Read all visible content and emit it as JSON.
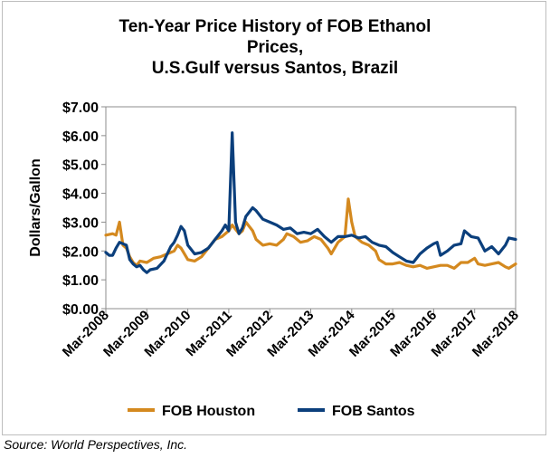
{
  "chart_data": {
    "type": "line",
    "title_lines": [
      "Ten-Year Price History of FOB Ethanol",
      "Prices,",
      "U.S.Gulf versus Santos, Brazil"
    ],
    "ylabel": "Dollars/Gallon",
    "xlabel": "",
    "ylim": [
      0,
      7
    ],
    "y_ticks": [
      {
        "value": 0,
        "label": "$0.00"
      },
      {
        "value": 1,
        "label": "$1.00"
      },
      {
        "value": 2,
        "label": "$2.00"
      },
      {
        "value": 3,
        "label": "$3.00"
      },
      {
        "value": 4,
        "label": "$4.00"
      },
      {
        "value": 5,
        "label": "$5.00"
      },
      {
        "value": 6,
        "label": "$6.00"
      },
      {
        "value": 7,
        "label": "$7.00"
      }
    ],
    "x_range": [
      "2008-03",
      "2018-03"
    ],
    "x_ticks": [
      "Mar-2008",
      "Mar-2009",
      "Mar-2010",
      "Mar-2011",
      "Mar-2012",
      "Mar-2013",
      "Mar-2014",
      "Mar-2015",
      "Mar-2016",
      "Mar-2017",
      "Mar-2018"
    ],
    "grid": false,
    "legend_position": "bottom",
    "series": [
      {
        "name": "FOB Houston",
        "color": "#d4891f",
        "points": [
          [
            "2008-03",
            2.55
          ],
          [
            "2008-05",
            2.6
          ],
          [
            "2008-06",
            2.55
          ],
          [
            "2008-07",
            3.0
          ],
          [
            "2008-08",
            2.2
          ],
          [
            "2008-09",
            2.1
          ],
          [
            "2008-10",
            1.8
          ],
          [
            "2008-11",
            1.6
          ],
          [
            "2008-12",
            1.5
          ],
          [
            "2009-01",
            1.65
          ],
          [
            "2009-03",
            1.6
          ],
          [
            "2009-05",
            1.75
          ],
          [
            "2009-07",
            1.8
          ],
          [
            "2009-09",
            1.9
          ],
          [
            "2009-11",
            2.0
          ],
          [
            "2009-12",
            2.2
          ],
          [
            "2010-01",
            2.1
          ],
          [
            "2010-03",
            1.7
          ],
          [
            "2010-05",
            1.65
          ],
          [
            "2010-07",
            1.8
          ],
          [
            "2010-09",
            2.1
          ],
          [
            "2010-11",
            2.4
          ],
          [
            "2011-01",
            2.5
          ],
          [
            "2011-03",
            2.7
          ],
          [
            "2011-04",
            2.9
          ],
          [
            "2011-06",
            2.6
          ],
          [
            "2011-07",
            2.7
          ],
          [
            "2011-08",
            3.0
          ],
          [
            "2011-10",
            2.7
          ],
          [
            "2011-11",
            2.4
          ],
          [
            "2012-01",
            2.2
          ],
          [
            "2012-03",
            2.25
          ],
          [
            "2012-05",
            2.2
          ],
          [
            "2012-07",
            2.4
          ],
          [
            "2012-08",
            2.6
          ],
          [
            "2012-10",
            2.5
          ],
          [
            "2012-12",
            2.3
          ],
          [
            "2013-02",
            2.35
          ],
          [
            "2013-04",
            2.5
          ],
          [
            "2013-06",
            2.4
          ],
          [
            "2013-08",
            2.1
          ],
          [
            "2013-09",
            1.9
          ],
          [
            "2013-11",
            2.3
          ],
          [
            "2014-01",
            2.5
          ],
          [
            "2014-02",
            3.8
          ],
          [
            "2014-03",
            3.0
          ],
          [
            "2014-04",
            2.5
          ],
          [
            "2014-06",
            2.3
          ],
          [
            "2014-08",
            2.2
          ],
          [
            "2014-10",
            2.0
          ],
          [
            "2014-11",
            1.7
          ],
          [
            "2015-01",
            1.55
          ],
          [
            "2015-03",
            1.55
          ],
          [
            "2015-05",
            1.6
          ],
          [
            "2015-07",
            1.5
          ],
          [
            "2015-09",
            1.45
          ],
          [
            "2015-11",
            1.5
          ],
          [
            "2016-01",
            1.4
          ],
          [
            "2016-03",
            1.45
          ],
          [
            "2016-05",
            1.5
          ],
          [
            "2016-07",
            1.5
          ],
          [
            "2016-09",
            1.4
          ],
          [
            "2016-11",
            1.6
          ],
          [
            "2017-01",
            1.6
          ],
          [
            "2017-03",
            1.75
          ],
          [
            "2017-04",
            1.55
          ],
          [
            "2017-06",
            1.5
          ],
          [
            "2017-08",
            1.55
          ],
          [
            "2017-10",
            1.6
          ],
          [
            "2017-12",
            1.45
          ],
          [
            "2018-01",
            1.4
          ],
          [
            "2018-03",
            1.55
          ]
        ]
      },
      {
        "name": "FOB Santos",
        "color": "#0b3f7c",
        "points": [
          [
            "2008-03",
            1.95
          ],
          [
            "2008-04",
            1.85
          ],
          [
            "2008-05",
            1.85
          ],
          [
            "2008-06",
            2.1
          ],
          [
            "2008-07",
            2.3
          ],
          [
            "2008-08",
            2.25
          ],
          [
            "2008-09",
            2.2
          ],
          [
            "2008-10",
            1.7
          ],
          [
            "2008-11",
            1.55
          ],
          [
            "2008-12",
            1.45
          ],
          [
            "2009-01",
            1.5
          ],
          [
            "2009-02",
            1.35
          ],
          [
            "2009-03",
            1.25
          ],
          [
            "2009-04",
            1.35
          ],
          [
            "2009-06",
            1.4
          ],
          [
            "2009-08",
            1.65
          ],
          [
            "2009-09",
            1.9
          ],
          [
            "2009-10",
            2.15
          ],
          [
            "2009-11",
            2.3
          ],
          [
            "2009-12",
            2.55
          ],
          [
            "2010-01",
            2.85
          ],
          [
            "2010-02",
            2.7
          ],
          [
            "2010-03",
            2.2
          ],
          [
            "2010-05",
            1.9
          ],
          [
            "2010-07",
            1.95
          ],
          [
            "2010-09",
            2.1
          ],
          [
            "2010-11",
            2.4
          ],
          [
            "2011-01",
            2.7
          ],
          [
            "2011-02",
            2.9
          ],
          [
            "2011-03",
            2.7
          ],
          [
            "2011-04",
            6.1
          ],
          [
            "2011-05",
            3.0
          ],
          [
            "2011-06",
            2.6
          ],
          [
            "2011-07",
            2.8
          ],
          [
            "2011-08",
            3.2
          ],
          [
            "2011-10",
            3.5
          ],
          [
            "2011-11",
            3.4
          ],
          [
            "2012-01",
            3.1
          ],
          [
            "2012-03",
            3.0
          ],
          [
            "2012-05",
            2.9
          ],
          [
            "2012-07",
            2.75
          ],
          [
            "2012-09",
            2.8
          ],
          [
            "2012-11",
            2.6
          ],
          [
            "2013-01",
            2.65
          ],
          [
            "2013-03",
            2.6
          ],
          [
            "2013-05",
            2.75
          ],
          [
            "2013-07",
            2.5
          ],
          [
            "2013-09",
            2.3
          ],
          [
            "2013-11",
            2.5
          ],
          [
            "2014-01",
            2.5
          ],
          [
            "2014-03",
            2.55
          ],
          [
            "2014-05",
            2.45
          ],
          [
            "2014-07",
            2.5
          ],
          [
            "2014-09",
            2.3
          ],
          [
            "2014-11",
            2.2
          ],
          [
            "2015-01",
            2.15
          ],
          [
            "2015-03",
            1.95
          ],
          [
            "2015-05",
            1.8
          ],
          [
            "2015-07",
            1.65
          ],
          [
            "2015-09",
            1.6
          ],
          [
            "2015-11",
            1.9
          ],
          [
            "2016-01",
            2.1
          ],
          [
            "2016-03",
            2.25
          ],
          [
            "2016-04",
            2.3
          ],
          [
            "2016-05",
            1.85
          ],
          [
            "2016-07",
            2.0
          ],
          [
            "2016-09",
            2.2
          ],
          [
            "2016-11",
            2.25
          ],
          [
            "2016-12",
            2.7
          ],
          [
            "2017-02",
            2.5
          ],
          [
            "2017-04",
            2.45
          ],
          [
            "2017-06",
            2.0
          ],
          [
            "2017-08",
            2.15
          ],
          [
            "2017-10",
            1.9
          ],
          [
            "2017-12",
            2.2
          ],
          [
            "2018-01",
            2.45
          ],
          [
            "2018-03",
            2.4
          ]
        ]
      }
    ]
  },
  "source": "Source: World Perspectives, Inc."
}
